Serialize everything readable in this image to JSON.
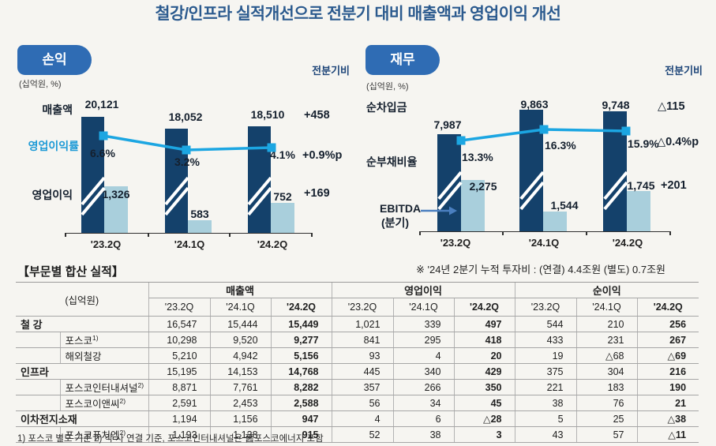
{
  "title": "철강/인프라 실적개선으로 전분기 대비 매출액과 영업이익 개선",
  "colors": {
    "title_navy": "#2b5a8e",
    "badge_blue": "#2f6cb4",
    "bar_dark_navy": "#14416b",
    "bar_light_blue": "#a9cfdc",
    "line_blue": "#1ca6e2",
    "qoq_navy": "#1e4679",
    "background": "#f6f5f1"
  },
  "pl": {
    "badge": "손익",
    "qoq": "전분기비",
    "unit": "(십억원, %)",
    "labels": {
      "revenue": "매출액",
      "margin": "영업이익률",
      "profit": "영업이익"
    },
    "revenue": {
      "values": [
        "20,121",
        "18,052",
        "18,510"
      ],
      "delta": "+458"
    },
    "margin": {
      "values": [
        "6.6%",
        "3.2%",
        "4.1%"
      ],
      "delta": "+0.9%p"
    },
    "profit": {
      "values": [
        "1,326",
        "583",
        "752"
      ],
      "delta": "+169"
    },
    "categories": [
      "'23.2Q",
      "'24.1Q",
      "'24.2Q"
    ]
  },
  "fin": {
    "badge": "재무",
    "qoq": "전분기비",
    "unit": "(십억원, %)",
    "labels": {
      "debt": "순차입금",
      "ratio": "순부채비율",
      "ebitda_line1": "EBITDA",
      "ebitda_line2": "(분기)"
    },
    "debt": {
      "values": [
        "7,987",
        "9,863",
        "9,748"
      ],
      "delta": "△115"
    },
    "ratio": {
      "values": [
        "13.3%",
        "16.3%",
        "15.9%"
      ],
      "delta": "△0.4%p"
    },
    "ebitda": {
      "values": [
        "2,275",
        "1,544",
        "1,745"
      ],
      "delta": "+201"
    },
    "categories": [
      "'23.2Q",
      "'24.1Q",
      "'24.2Q"
    ],
    "note": "※ '24년 2분기 누적 투자비 :  (연결) 4.4조원  (별도) 0.7조원"
  },
  "table": {
    "title": "【부문별 합산 실적】",
    "unit": "(십억원)",
    "groups": [
      "매출액",
      "영업이익",
      "순이익"
    ],
    "quarters": [
      "'23.2Q",
      "'24.1Q",
      "'24.2Q"
    ],
    "rows": [
      {
        "label": "철 강",
        "sub": false,
        "values": [
          "16,547",
          "15,444",
          "15,449",
          "1,021",
          "339",
          "497",
          "544",
          "210",
          "256"
        ]
      },
      {
        "label": "포스코",
        "sup": "1)",
        "sub": true,
        "values": [
          "10,298",
          "9,520",
          "9,277",
          "841",
          "295",
          "418",
          "433",
          "231",
          "267"
        ]
      },
      {
        "label": "해외철강",
        "sub": true,
        "values": [
          "5,210",
          "4,942",
          "5,156",
          "93",
          "4",
          "20",
          "19",
          "△68",
          "△69"
        ]
      },
      {
        "label": "인프라",
        "sub": false,
        "values": [
          "15,195",
          "14,153",
          "14,768",
          "445",
          "340",
          "429",
          "375",
          "304",
          "216"
        ]
      },
      {
        "label": "포스코인터내셔널",
        "sup": "2)",
        "sub": true,
        "values": [
          "8,871",
          "7,761",
          "8,282",
          "357",
          "266",
          "350",
          "221",
          "183",
          "190"
        ]
      },
      {
        "label": "포스코이앤씨",
        "sup": "2)",
        "sub": true,
        "values": [
          "2,591",
          "2,453",
          "2,588",
          "56",
          "34",
          "45",
          "38",
          "76",
          "21"
        ]
      },
      {
        "label": "이차전지소재",
        "sub": false,
        "values": [
          "1,194",
          "1,156",
          "947",
          "4",
          "6",
          "△28",
          "5",
          "25",
          "△38"
        ]
      },
      {
        "label": "포스코퓨처엠",
        "sup": "2)",
        "sub": true,
        "values": [
          "1,193",
          "1,138",
          "915",
          "52",
          "38",
          "3",
          "43",
          "57",
          "△11"
        ]
      }
    ],
    "footnote": "1) 포스코 별도 기준    2) 각 사 연결 기준, 포스코인터내셔널은 舊포스코에너지 포함"
  },
  "chart_data": [
    {
      "type": "bar+line",
      "title": "손익",
      "unit": "십억원, %",
      "categories": [
        "'23.2Q",
        "'24.1Q",
        "'24.2Q"
      ],
      "series": [
        {
          "name": "매출액",
          "type": "bar",
          "values": [
            20121,
            18052,
            18510
          ],
          "delta_qoq": "+458"
        },
        {
          "name": "영업이익",
          "type": "bar",
          "values": [
            1326,
            583,
            752
          ],
          "delta_qoq": "+169"
        },
        {
          "name": "영업이익률",
          "type": "line",
          "unit": "%",
          "values": [
            6.6,
            3.2,
            4.1
          ],
          "delta_qoq": "+0.9%p"
        }
      ],
      "broken_axis": true,
      "legend_position": "left"
    },
    {
      "type": "bar+line",
      "title": "재무",
      "unit": "십억원, %",
      "categories": [
        "'23.2Q",
        "'24.1Q",
        "'24.2Q"
      ],
      "series": [
        {
          "name": "순차입금",
          "type": "bar",
          "values": [
            7987,
            9863,
            9748
          ],
          "delta_qoq": "△115"
        },
        {
          "name": "EBITDA(분기)",
          "type": "bar",
          "values": [
            2275,
            1544,
            1745
          ],
          "delta_qoq": "+201"
        },
        {
          "name": "순부채비율",
          "type": "line",
          "unit": "%",
          "values": [
            13.3,
            16.3,
            15.9
          ],
          "delta_qoq": "△0.4%p"
        }
      ],
      "broken_axis": true,
      "legend_position": "left",
      "note": "※ '24년 2분기 누적 투자비 : (연결) 4.4조원 (별도) 0.7조원"
    },
    {
      "type": "table",
      "title": "부문별 합산 실적",
      "unit": "십억원",
      "column_groups": [
        "매출액",
        "영업이익",
        "순이익"
      ],
      "columns": [
        "'23.2Q",
        "'24.1Q",
        "'24.2Q",
        "'23.2Q",
        "'24.1Q",
        "'24.2Q",
        "'23.2Q",
        "'24.1Q",
        "'24.2Q"
      ],
      "rows": [
        {
          "name": "철강",
          "values": [
            16547,
            15444,
            15449,
            1021,
            339,
            497,
            544,
            210,
            256
          ]
        },
        {
          "name": "포스코",
          "values": [
            10298,
            9520,
            9277,
            841,
            295,
            418,
            433,
            231,
            267
          ]
        },
        {
          "name": "해외철강",
          "values": [
            5210,
            4942,
            5156,
            93,
            4,
            20,
            19,
            -68,
            -69
          ]
        },
        {
          "name": "인프라",
          "values": [
            15195,
            14153,
            14768,
            445,
            340,
            429,
            375,
            304,
            216
          ]
        },
        {
          "name": "포스코인터내셔널",
          "values": [
            8871,
            7761,
            8282,
            357,
            266,
            350,
            221,
            183,
            190
          ]
        },
        {
          "name": "포스코이앤씨",
          "values": [
            2591,
            2453,
            2588,
            56,
            34,
            45,
            38,
            76,
            21
          ]
        },
        {
          "name": "이차전지소재",
          "values": [
            1194,
            1156,
            947,
            4,
            6,
            -28,
            5,
            25,
            -38
          ]
        },
        {
          "name": "포스코퓨처엠",
          "values": [
            1193,
            1138,
            915,
            52,
            38,
            3,
            43,
            57,
            -11
          ]
        }
      ]
    }
  ]
}
